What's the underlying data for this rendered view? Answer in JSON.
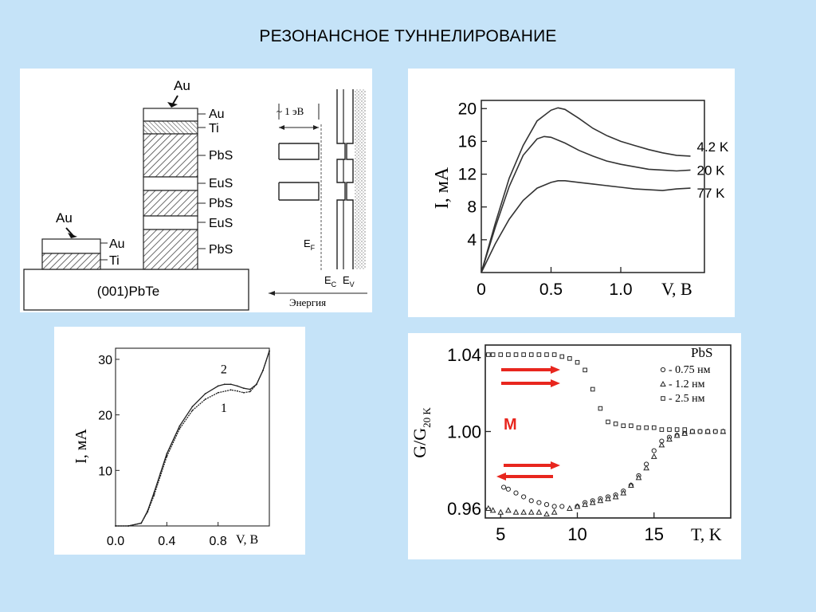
{
  "title": "РЕЗОНАНСНОЕ ТУННЕЛИРОВАНИЕ",
  "structure": {
    "left_stack": {
      "top_label": "Au",
      "layers": [
        "Au",
        "Ti"
      ]
    },
    "right_stack": {
      "top_label": "Au",
      "layers": [
        "Au",
        "Ti",
        "PbS",
        "EuS",
        "PbS",
        "EuS",
        "PbS"
      ]
    },
    "substrate": "(001)PbTe",
    "band": {
      "gap_label": "~ 1 эВ",
      "ef": "E",
      "ef_sub": "F",
      "ec": "E",
      "ec_sub": "C",
      "ev": "E",
      "ev_sub": "V",
      "axis": "Энергия"
    }
  },
  "colors": {
    "arrow": "#e8261e",
    "marker": "#e8261e",
    "background": "#c5e3f8"
  },
  "chart_data": [
    {
      "type": "line",
      "xlabel": "V, B",
      "ylabel": "I, мА",
      "x_ticks": [
        "0",
        "0.5",
        "1.0"
      ],
      "y_ticks": [
        "4",
        "8",
        "12",
        "16",
        "20"
      ],
      "xlim": [
        0,
        1.6
      ],
      "ylim": [
        0,
        21
      ],
      "series": [
        {
          "name": "4.2 K",
          "x": [
            0,
            0.1,
            0.2,
            0.3,
            0.4,
            0.5,
            0.55,
            0.6,
            0.7,
            0.8,
            0.9,
            1.0,
            1.1,
            1.2,
            1.3,
            1.4,
            1.5
          ],
          "values": [
            0,
            6,
            11.5,
            15.5,
            18.5,
            19.8,
            20.1,
            19.9,
            18.8,
            17.6,
            16.7,
            16.0,
            15.5,
            15.0,
            14.6,
            14.3,
            14.2
          ]
        },
        {
          "name": "20 K",
          "x": [
            0,
            0.1,
            0.2,
            0.3,
            0.4,
            0.45,
            0.5,
            0.6,
            0.7,
            0.8,
            0.9,
            1.0,
            1.1,
            1.2,
            1.3,
            1.4,
            1.5
          ],
          "values": [
            0,
            5.5,
            10.5,
            14.3,
            16.3,
            16.6,
            16.5,
            15.8,
            14.9,
            14.2,
            13.6,
            13.2,
            12.9,
            12.6,
            12.5,
            12.4,
            12.5
          ]
        },
        {
          "name": "77 K",
          "x": [
            0,
            0.1,
            0.2,
            0.3,
            0.4,
            0.5,
            0.55,
            0.6,
            0.7,
            0.8,
            0.9,
            1.0,
            1.1,
            1.2,
            1.3,
            1.4,
            1.5
          ],
          "values": [
            0,
            3.5,
            6.5,
            8.8,
            10.3,
            11.0,
            11.2,
            11.2,
            11.0,
            10.8,
            10.6,
            10.4,
            10.2,
            10.1,
            10.0,
            10.2,
            10.3
          ]
        }
      ]
    },
    {
      "type": "line",
      "xlabel": "V, B",
      "ylabel": "I, мА",
      "x_ticks": [
        "0.0",
        "0.4",
        "0.8"
      ],
      "y_ticks": [
        "10",
        "20",
        "30"
      ],
      "xlim": [
        0,
        1.2
      ],
      "ylim": [
        0,
        32
      ],
      "series": [
        {
          "name": "1",
          "x": [
            0,
            0.1,
            0.2,
            0.25,
            0.3,
            0.35,
            0.4,
            0.5,
            0.6,
            0.7,
            0.8,
            0.9,
            0.95,
            1.0,
            1.05,
            1.1,
            1.15,
            1.2
          ],
          "values": [
            0,
            0,
            0.5,
            2.5,
            5.5,
            9,
            12.5,
            17.5,
            20.8,
            22.8,
            24.0,
            24.5,
            24.3,
            24.0,
            24.2,
            25.5,
            28.0,
            31.5
          ]
        },
        {
          "name": "2",
          "x": [
            0,
            0.1,
            0.2,
            0.25,
            0.3,
            0.35,
            0.4,
            0.5,
            0.6,
            0.7,
            0.8,
            0.85,
            0.9,
            0.95,
            1.0,
            1.05,
            1.1,
            1.15,
            1.2
          ],
          "values": [
            0,
            0,
            0.5,
            2.7,
            6.0,
            9.5,
            13.0,
            18.0,
            21.5,
            23.8,
            25.2,
            25.5,
            25.5,
            25.2,
            24.8,
            24.6,
            25.5,
            28.0,
            31.5
          ]
        }
      ]
    },
    {
      "type": "scatter",
      "xlabel": "T, K",
      "ylabel": "G/G",
      "ylabel_sub": "20 K",
      "x_ticks": [
        "5",
        "10",
        "15"
      ],
      "y_ticks": [
        "0.96",
        "1.00",
        "1.04"
      ],
      "xlim": [
        4,
        20
      ],
      "ylim": [
        0.955,
        1.045
      ],
      "legend_title": "PbS",
      "legend_position": "top-right",
      "marker_label": "M",
      "series": [
        {
          "name": "- 0.75 нм",
          "marker": "circle",
          "x": [
            5.2,
            5.5,
            6,
            6.5,
            7,
            7.5,
            8,
            8.5,
            9,
            10,
            10.5,
            11,
            11.5,
            12,
            12.5,
            13,
            13.5,
            14,
            14.5,
            15,
            15.5,
            16,
            16.5,
            17,
            17.5,
            18,
            18.5,
            19
          ],
          "values": [
            0.971,
            0.97,
            0.968,
            0.966,
            0.964,
            0.963,
            0.962,
            0.961,
            0.961,
            0.961,
            0.963,
            0.964,
            0.965,
            0.966,
            0.967,
            0.969,
            0.972,
            0.977,
            0.983,
            0.99,
            0.995,
            0.997,
            0.998,
            0.999,
            1.0,
            1.0,
            1.0,
            1.0
          ]
        },
        {
          "name": "- 1.2 нм",
          "marker": "triangle",
          "x": [
            4.2,
            4.5,
            5,
            5.5,
            6,
            6.5,
            7,
            7.5,
            8,
            8.5,
            9.5,
            10,
            10.5,
            11,
            11.5,
            12,
            12.5,
            13,
            13.5,
            14,
            14.5,
            15,
            15.5,
            16,
            16.5,
            17,
            17.5,
            18.5,
            19.5
          ],
          "values": [
            0.96,
            0.959,
            0.958,
            0.959,
            0.958,
            0.958,
            0.958,
            0.958,
            0.957,
            0.958,
            0.96,
            0.961,
            0.962,
            0.963,
            0.964,
            0.965,
            0.966,
            0.968,
            0.972,
            0.976,
            0.981,
            0.987,
            0.993,
            0.996,
            0.998,
            0.999,
            1.0,
            1.0,
            1.0
          ]
        },
        {
          "name": "- 2.5 нм",
          "marker": "square",
          "x": [
            4.2,
            4.5,
            5,
            5.5,
            6,
            6.5,
            7,
            7.5,
            8,
            8.5,
            9,
            9.5,
            10,
            10.5,
            11,
            11.5,
            12,
            12.5,
            13,
            13.5,
            14,
            14.5,
            15,
            15.5,
            16,
            16.5,
            17,
            17.5,
            18,
            18.5,
            19,
            19.5
          ],
          "values": [
            1.04,
            1.04,
            1.04,
            1.04,
            1.04,
            1.04,
            1.04,
            1.04,
            1.04,
            1.04,
            1.039,
            1.038,
            1.036,
            1.032,
            1.022,
            1.012,
            1.005,
            1.004,
            1.003,
            1.003,
            1.002,
            1.002,
            1.002,
            1.001,
            1.001,
            1.001,
            1.001,
            1.0,
            1.0,
            1.0,
            1.0,
            1.0
          ]
        }
      ]
    }
  ]
}
